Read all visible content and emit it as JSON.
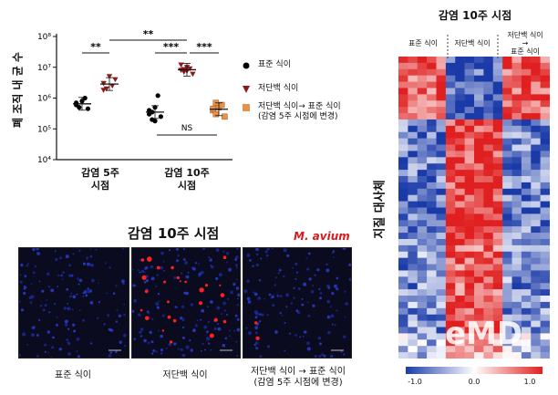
{
  "scatter": {
    "ylabel": "폐 조직 내 균 수",
    "yticks": [
      "10⁴",
      "10⁵",
      "10⁶",
      "10⁷",
      "10⁸"
    ],
    "groups": [
      "감염 5주\n시점",
      "감염 10주\n시점"
    ],
    "sig": {
      "g5": "**",
      "between": "**",
      "g10_left": "***",
      "g10_right": "***",
      "ns": "NS"
    },
    "legend": [
      {
        "label": "표준 식이",
        "marker": "circle",
        "color": "#000000"
      },
      {
        "label": "저단백 식이",
        "marker": "triangle-down",
        "color": "#8b1a1a"
      },
      {
        "label": "저단백 식이→ 표준 식이\n(감염 5주 시점에 변경)",
        "marker": "square",
        "color": "#e8914a"
      }
    ]
  },
  "chart_data": {
    "type": "scatter",
    "yscale": "log",
    "ylim": [
      10000,
      100000000
    ],
    "categories": [
      "감염 5주 시점",
      "감염 10주 시점"
    ],
    "series": [
      {
        "name": "표준 식이",
        "group": "감염 5주 시점",
        "values": [
          600000,
          500000,
          800000,
          1000000,
          450000,
          700000
        ]
      },
      {
        "name": "저단백 식이",
        "group": "감염 5주 시점",
        "values": [
          3000000,
          2000000,
          5000000,
          2500000,
          4000000,
          1800000
        ]
      },
      {
        "name": "표준 식이",
        "group": "감염 10주 시점",
        "values": [
          300000,
          200000,
          500000,
          1200000,
          250000,
          400000,
          350000,
          180000
        ]
      },
      {
        "name": "저단백 식이",
        "group": "감염 10주 시점",
        "values": [
          8000000,
          7000000,
          10000000,
          9000000,
          6000000,
          12000000,
          8500000,
          7500000
        ]
      },
      {
        "name": "저단백 식이→ 표준 식이\n(감염 5주 시점에 변경)",
        "group": "감염 10주 시점",
        "values": [
          400000,
          300000,
          500000,
          600000,
          250000,
          450000,
          700000
        ]
      }
    ]
  },
  "micro": {
    "title": "감염 10주 시점",
    "stain": "M. avium",
    "captions": [
      "표준 식이",
      "저단백 식이",
      "저단백 식이 → 표준 식이\n(감염 5주 시점에 변경)"
    ]
  },
  "heatmap": {
    "title": "감염 10주 시점",
    "col_labels": [
      "표준 식이",
      "저단백 식이",
      "저단백 식이\n→\n표준 식이"
    ],
    "ylabel": "지질 대사체",
    "scale": [
      "-1.0",
      "0.0",
      "1.0"
    ],
    "low_color": "#1a3aa8",
    "mid_color": "#ffffff",
    "high_color": "#e02020"
  },
  "watermark": "eMD"
}
